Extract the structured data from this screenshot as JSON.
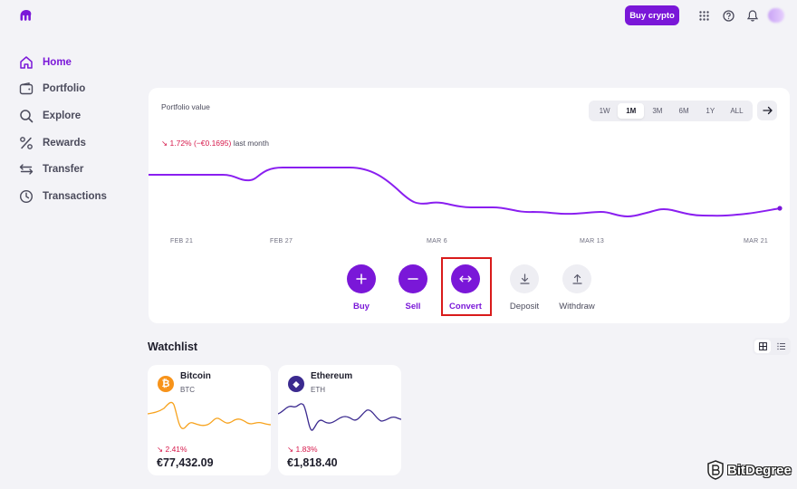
{
  "colors": {
    "brand": "#7a17d8",
    "negative": "#d6174a",
    "bitcoin": "#f7931a",
    "ethereum": "#3b2a8f"
  },
  "header": {
    "buy_crypto_label": "Buy crypto",
    "icons": [
      "grid-icon",
      "help-icon",
      "bell-icon"
    ]
  },
  "sidebar": {
    "items": [
      {
        "label": "Home",
        "icon": "home-icon",
        "active": true
      },
      {
        "label": "Portfolio",
        "icon": "wallet-icon",
        "active": false
      },
      {
        "label": "Explore",
        "icon": "search-icon",
        "active": false
      },
      {
        "label": "Rewards",
        "icon": "percent-icon",
        "active": false
      },
      {
        "label": "Transfer",
        "icon": "transfer-icon",
        "active": false
      },
      {
        "label": "Transactions",
        "icon": "clock-icon",
        "active": false
      }
    ]
  },
  "portfolio": {
    "title": "Portfolio value",
    "ranges": [
      "1W",
      "1M",
      "3M",
      "6M",
      "1Y",
      "ALL"
    ],
    "selected_range": "1M",
    "change_arrow": "↘",
    "change_value": "1.72% (−€0.1695)",
    "change_period": "last month",
    "dates": [
      "FEB 21",
      "FEB 27",
      "MAR 6",
      "MAR 13",
      "MAR 21"
    ]
  },
  "actions": [
    {
      "label": "Buy",
      "icon": "plus-icon"
    },
    {
      "label": "Sell",
      "icon": "minus-icon"
    },
    {
      "label": "Convert",
      "icon": "convert-icon"
    },
    {
      "label": "Deposit",
      "icon": "download-icon"
    },
    {
      "label": "Withdraw",
      "icon": "upload-icon"
    }
  ],
  "watchlist": {
    "title": "Watchlist",
    "assets": [
      {
        "name": "Bitcoin",
        "ticker": "BTC",
        "symbol": "₿",
        "change": "↘ 2.41%",
        "price": "€77,432.09"
      },
      {
        "name": "Ethereum",
        "ticker": "ETH",
        "symbol": "◆",
        "change": "↘ 1.83%",
        "price": "€1,818.40"
      }
    ]
  },
  "watermark": {
    "text": "BitDegree"
  }
}
